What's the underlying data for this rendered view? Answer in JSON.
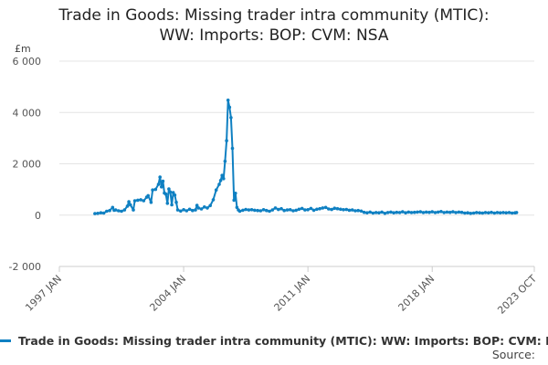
{
  "chart_data": {
    "type": "line",
    "title": "Trade in Goods: Missing trader intra community (MTIC): WW: Imports: BOP: CVM: NSA",
    "unit_label": "£m",
    "ylim": [
      -2000,
      6000
    ],
    "y_ticks": [
      {
        "value": -2000,
        "label": "-2 000"
      },
      {
        "value": 0,
        "label": "0"
      },
      {
        "value": 2000,
        "label": "2 000"
      },
      {
        "value": 4000,
        "label": "4 000"
      },
      {
        "value": 6000,
        "label": "6 000"
      }
    ],
    "x_range": [
      "1997-01",
      "2023-10"
    ],
    "x_ticks": [
      {
        "date": "1997-01",
        "label": "1997 JAN"
      },
      {
        "date": "2004-01",
        "label": "2004 JAN"
      },
      {
        "date": "2011-01",
        "label": "2011 JAN"
      },
      {
        "date": "2018-01",
        "label": "2018 JAN"
      },
      {
        "date": "2023-10",
        "label": "2023 OCT"
      }
    ],
    "grid": "horizontal",
    "legend_position": "bottom",
    "series": [
      {
        "name": "Trade in Goods: Missing trader intra community (MTIC): WW: Imports: BOP: CVM: NSA",
        "color": "#0f80c2",
        "points": [
          [
            "1999-01",
            60
          ],
          [
            "1999-03",
            70
          ],
          [
            "1999-05",
            90
          ],
          [
            "1999-07",
            80
          ],
          [
            "1999-09",
            150
          ],
          [
            "1999-11",
            180
          ],
          [
            "2000-01",
            300
          ],
          [
            "2000-02",
            190
          ],
          [
            "2000-03",
            200
          ],
          [
            "2000-05",
            170
          ],
          [
            "2000-07",
            150
          ],
          [
            "2000-09",
            200
          ],
          [
            "2000-11",
            350
          ],
          [
            "2000-12",
            520
          ],
          [
            "2001-01",
            400
          ],
          [
            "2001-03",
            200
          ],
          [
            "2001-04",
            560
          ],
          [
            "2001-06",
            580
          ],
          [
            "2001-08",
            600
          ],
          [
            "2001-10",
            560
          ],
          [
            "2001-12",
            700
          ],
          [
            "2002-01",
            760
          ],
          [
            "2002-03",
            500
          ],
          [
            "2002-04",
            980
          ],
          [
            "2002-06",
            1000
          ],
          [
            "2002-08",
            1200
          ],
          [
            "2002-09",
            1480
          ],
          [
            "2002-10",
            1100
          ],
          [
            "2002-11",
            1320
          ],
          [
            "2002-12",
            860
          ],
          [
            "2003-01",
            820
          ],
          [
            "2003-02",
            460
          ],
          [
            "2003-03",
            1020
          ],
          [
            "2003-04",
            900
          ],
          [
            "2003-05",
            400
          ],
          [
            "2003-06",
            880
          ],
          [
            "2003-07",
            780
          ],
          [
            "2003-08",
            500
          ],
          [
            "2003-09",
            200
          ],
          [
            "2003-11",
            160
          ],
          [
            "2004-01",
            210
          ],
          [
            "2004-03",
            170
          ],
          [
            "2004-05",
            230
          ],
          [
            "2004-07",
            180
          ],
          [
            "2004-09",
            200
          ],
          [
            "2004-10",
            380
          ],
          [
            "2004-11",
            280
          ],
          [
            "2005-01",
            240
          ],
          [
            "2005-03",
            320
          ],
          [
            "2005-05",
            280
          ],
          [
            "2005-07",
            370
          ],
          [
            "2005-09",
            600
          ],
          [
            "2005-11",
            980
          ],
          [
            "2006-01",
            1200
          ],
          [
            "2006-02",
            1350
          ],
          [
            "2006-03",
            1550
          ],
          [
            "2006-04",
            1420
          ],
          [
            "2006-05",
            2100
          ],
          [
            "2006-06",
            2900
          ],
          [
            "2006-07",
            4480
          ],
          [
            "2006-08",
            4200
          ],
          [
            "2006-09",
            3800
          ],
          [
            "2006-10",
            2600
          ],
          [
            "2006-11",
            580
          ],
          [
            "2006-12",
            850
          ],
          [
            "2007-01",
            300
          ],
          [
            "2007-02",
            200
          ],
          [
            "2007-03",
            150
          ],
          [
            "2007-05",
            190
          ],
          [
            "2007-07",
            220
          ],
          [
            "2007-09",
            200
          ],
          [
            "2007-11",
            210
          ],
          [
            "2008-01",
            190
          ],
          [
            "2008-03",
            180
          ],
          [
            "2008-05",
            170
          ],
          [
            "2008-07",
            210
          ],
          [
            "2008-09",
            180
          ],
          [
            "2008-11",
            150
          ],
          [
            "2009-01",
            200
          ],
          [
            "2009-03",
            280
          ],
          [
            "2009-05",
            220
          ],
          [
            "2009-07",
            250
          ],
          [
            "2009-09",
            180
          ],
          [
            "2009-11",
            200
          ],
          [
            "2010-01",
            210
          ],
          [
            "2010-03",
            170
          ],
          [
            "2010-05",
            190
          ],
          [
            "2010-07",
            230
          ],
          [
            "2010-09",
            260
          ],
          [
            "2010-11",
            200
          ],
          [
            "2011-01",
            210
          ],
          [
            "2011-03",
            260
          ],
          [
            "2011-05",
            190
          ],
          [
            "2011-07",
            230
          ],
          [
            "2011-09",
            250
          ],
          [
            "2011-11",
            280
          ],
          [
            "2012-01",
            300
          ],
          [
            "2012-03",
            240
          ],
          [
            "2012-05",
            220
          ],
          [
            "2012-07",
            270
          ],
          [
            "2012-09",
            250
          ],
          [
            "2012-11",
            230
          ],
          [
            "2013-01",
            210
          ],
          [
            "2013-03",
            220
          ],
          [
            "2013-05",
            190
          ],
          [
            "2013-07",
            200
          ],
          [
            "2013-09",
            170
          ],
          [
            "2013-11",
            180
          ],
          [
            "2014-01",
            160
          ],
          [
            "2014-03",
            110
          ],
          [
            "2014-05",
            90
          ],
          [
            "2014-07",
            120
          ],
          [
            "2014-09",
            80
          ],
          [
            "2014-11",
            100
          ],
          [
            "2015-01",
            90
          ],
          [
            "2015-03",
            120
          ],
          [
            "2015-05",
            70
          ],
          [
            "2015-07",
            100
          ],
          [
            "2015-09",
            120
          ],
          [
            "2015-11",
            90
          ],
          [
            "2016-01",
            110
          ],
          [
            "2016-03",
            100
          ],
          [
            "2016-05",
            130
          ],
          [
            "2016-07",
            90
          ],
          [
            "2016-09",
            120
          ],
          [
            "2016-11",
            100
          ],
          [
            "2017-01",
            110
          ],
          [
            "2017-03",
            120
          ],
          [
            "2017-05",
            130
          ],
          [
            "2017-07",
            100
          ],
          [
            "2017-09",
            120
          ],
          [
            "2017-11",
            110
          ],
          [
            "2018-01",
            130
          ],
          [
            "2018-03",
            100
          ],
          [
            "2018-05",
            120
          ],
          [
            "2018-07",
            140
          ],
          [
            "2018-09",
            100
          ],
          [
            "2018-11",
            120
          ],
          [
            "2019-01",
            110
          ],
          [
            "2019-03",
            130
          ],
          [
            "2019-05",
            100
          ],
          [
            "2019-07",
            120
          ],
          [
            "2019-09",
            110
          ],
          [
            "2019-11",
            80
          ],
          [
            "2020-01",
            90
          ],
          [
            "2020-03",
            70
          ],
          [
            "2020-05",
            80
          ],
          [
            "2020-07",
            100
          ],
          [
            "2020-09",
            90
          ],
          [
            "2020-11",
            80
          ],
          [
            "2021-01",
            100
          ],
          [
            "2021-03",
            90
          ],
          [
            "2021-05",
            110
          ],
          [
            "2021-07",
            80
          ],
          [
            "2021-09",
            100
          ],
          [
            "2021-11",
            90
          ],
          [
            "2022-01",
            100
          ],
          [
            "2022-03",
            90
          ],
          [
            "2022-05",
            100
          ],
          [
            "2022-07",
            80
          ],
          [
            "2022-09",
            90
          ],
          [
            "2022-10",
            100
          ]
        ]
      }
    ]
  },
  "source_label": "Source:"
}
